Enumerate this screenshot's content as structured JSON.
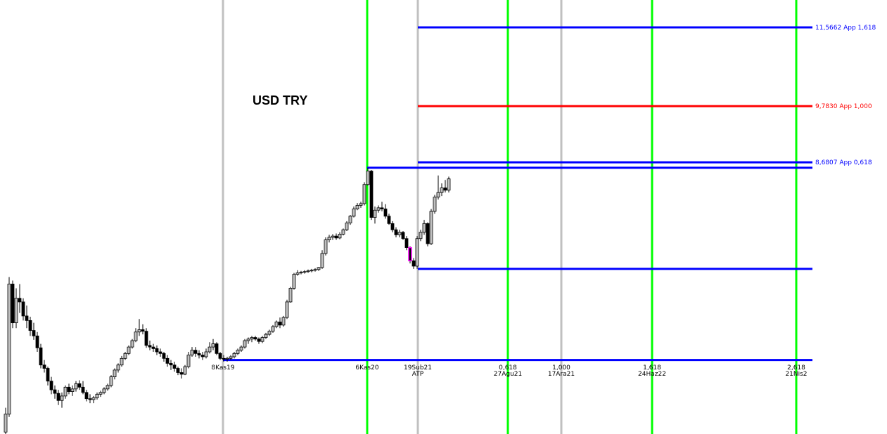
{
  "chart_data": {
    "type": "candlestick",
    "title": "USD TRY",
    "log_scale": true,
    "ylim": [
      4.87,
      12.26
    ],
    "xlim": [
      -1.6,
      250.6
    ],
    "up_color": "#c0c0c0",
    "down_color": "#000000",
    "highlight": {
      "index": 115,
      "color": "#ff00ff"
    },
    "candles": [
      [
        4.89,
        5.15,
        4.86,
        5.08
      ],
      [
        5.08,
        6.8,
        5.05,
        6.7
      ],
      [
        6.7,
        6.75,
        6.1,
        6.17
      ],
      [
        6.17,
        6.64,
        6.1,
        6.5
      ],
      [
        6.5,
        6.7,
        6.3,
        6.45
      ],
      [
        6.45,
        6.5,
        6.2,
        6.26
      ],
      [
        6.26,
        6.4,
        6.1,
        6.2
      ],
      [
        6.2,
        6.25,
        6.0,
        6.07
      ],
      [
        6.07,
        6.17,
        5.95,
        6.0
      ],
      [
        6.0,
        6.05,
        5.8,
        5.85
      ],
      [
        5.85,
        5.9,
        5.6,
        5.64
      ],
      [
        5.64,
        5.7,
        5.55,
        5.6
      ],
      [
        5.6,
        5.62,
        5.4,
        5.45
      ],
      [
        5.45,
        5.5,
        5.3,
        5.35
      ],
      [
        5.35,
        5.4,
        5.25,
        5.31
      ],
      [
        5.31,
        5.35,
        5.18,
        5.23
      ],
      [
        5.23,
        5.32,
        5.15,
        5.28
      ],
      [
        5.28,
        5.4,
        5.25,
        5.38
      ],
      [
        5.38,
        5.42,
        5.3,
        5.33
      ],
      [
        5.33,
        5.4,
        5.28,
        5.36
      ],
      [
        5.36,
        5.45,
        5.33,
        5.42
      ],
      [
        5.42,
        5.46,
        5.35,
        5.38
      ],
      [
        5.38,
        5.45,
        5.3,
        5.32
      ],
      [
        5.32,
        5.35,
        5.22,
        5.25
      ],
      [
        5.25,
        5.3,
        5.2,
        5.24
      ],
      [
        5.24,
        5.28,
        5.2,
        5.26
      ],
      [
        5.26,
        5.32,
        5.24,
        5.3
      ],
      [
        5.3,
        5.34,
        5.27,
        5.32
      ],
      [
        5.32,
        5.38,
        5.3,
        5.36
      ],
      [
        5.36,
        5.42,
        5.34,
        5.4
      ],
      [
        5.4,
        5.52,
        5.38,
        5.5
      ],
      [
        5.5,
        5.6,
        5.47,
        5.58
      ],
      [
        5.58,
        5.66,
        5.55,
        5.64
      ],
      [
        5.64,
        5.75,
        5.62,
        5.72
      ],
      [
        5.72,
        5.8,
        5.7,
        5.78
      ],
      [
        5.78,
        5.88,
        5.76,
        5.86
      ],
      [
        5.86,
        5.96,
        5.84,
        5.94
      ],
      [
        5.94,
        6.1,
        5.92,
        6.05
      ],
      [
        6.05,
        6.22,
        6.0,
        6.08
      ],
      [
        6.08,
        6.15,
        6.02,
        6.06
      ],
      [
        6.06,
        6.1,
        5.85,
        5.88
      ],
      [
        5.88,
        5.94,
        5.82,
        5.86
      ],
      [
        5.86,
        5.9,
        5.8,
        5.84
      ],
      [
        5.84,
        5.88,
        5.76,
        5.8
      ],
      [
        5.8,
        5.84,
        5.74,
        5.78
      ],
      [
        5.78,
        5.8,
        5.68,
        5.72
      ],
      [
        5.72,
        5.76,
        5.62,
        5.66
      ],
      [
        5.66,
        5.7,
        5.58,
        5.64
      ],
      [
        5.64,
        5.68,
        5.56,
        5.6
      ],
      [
        5.6,
        5.62,
        5.52,
        5.55
      ],
      [
        5.55,
        5.6,
        5.48,
        5.53
      ],
      [
        5.53,
        5.64,
        5.52,
        5.62
      ],
      [
        5.62,
        5.8,
        5.6,
        5.76
      ],
      [
        5.76,
        5.86,
        5.74,
        5.82
      ],
      [
        5.82,
        5.86,
        5.74,
        5.78
      ],
      [
        5.78,
        5.82,
        5.72,
        5.76
      ],
      [
        5.76,
        5.8,
        5.7,
        5.74
      ],
      [
        5.74,
        5.84,
        5.72,
        5.8
      ],
      [
        5.8,
        5.92,
        5.78,
        5.86
      ],
      [
        5.86,
        5.96,
        5.82,
        5.9
      ],
      [
        5.9,
        5.92,
        5.76,
        5.78
      ],
      [
        5.78,
        5.8,
        5.7,
        5.72
      ],
      [
        5.72,
        5.76,
        5.68,
        5.71
      ],
      [
        5.71,
        5.74,
        5.68,
        5.72
      ],
      [
        5.72,
        5.76,
        5.7,
        5.74
      ],
      [
        5.74,
        5.8,
        5.72,
        5.78
      ],
      [
        5.78,
        5.84,
        5.76,
        5.82
      ],
      [
        5.82,
        5.88,
        5.8,
        5.86
      ],
      [
        5.86,
        5.96,
        5.84,
        5.94
      ],
      [
        5.94,
        5.98,
        5.9,
        5.96
      ],
      [
        5.96,
        6.0,
        5.92,
        5.98
      ],
      [
        5.98,
        6.0,
        5.94,
        5.96
      ],
      [
        5.96,
        5.98,
        5.9,
        5.93
      ],
      [
        5.93,
        6.0,
        5.91,
        5.98
      ],
      [
        5.98,
        6.04,
        5.96,
        6.02
      ],
      [
        6.02,
        6.08,
        6.0,
        6.06
      ],
      [
        6.06,
        6.14,
        6.04,
        6.12
      ],
      [
        6.12,
        6.2,
        6.1,
        6.18
      ],
      [
        6.18,
        6.24,
        6.1,
        6.14
      ],
      [
        6.14,
        6.26,
        6.12,
        6.24
      ],
      [
        6.24,
        6.48,
        6.22,
        6.45
      ],
      [
        6.45,
        6.66,
        6.44,
        6.64
      ],
      [
        6.64,
        6.86,
        6.62,
        6.84
      ],
      [
        6.84,
        6.9,
        6.82,
        6.86
      ],
      [
        6.86,
        6.89,
        6.84,
        6.87
      ],
      [
        6.87,
        6.9,
        6.85,
        6.88
      ],
      [
        6.88,
        6.91,
        6.86,
        6.89
      ],
      [
        6.89,
        6.92,
        6.87,
        6.9
      ],
      [
        6.9,
        6.93,
        6.88,
        6.91
      ],
      [
        6.91,
        6.95,
        6.89,
        6.94
      ],
      [
        6.94,
        7.2,
        6.92,
        7.15
      ],
      [
        7.15,
        7.4,
        7.12,
        7.36
      ],
      [
        7.36,
        7.44,
        7.32,
        7.4
      ],
      [
        7.4,
        7.45,
        7.36,
        7.42
      ],
      [
        7.42,
        7.46,
        7.36,
        7.39
      ],
      [
        7.39,
        7.48,
        7.37,
        7.45
      ],
      [
        7.45,
        7.54,
        7.43,
        7.52
      ],
      [
        7.52,
        7.66,
        7.5,
        7.63
      ],
      [
        7.63,
        7.76,
        7.6,
        7.74
      ],
      [
        7.74,
        7.9,
        7.72,
        7.86
      ],
      [
        7.86,
        7.96,
        7.84,
        7.92
      ],
      [
        7.92,
        7.98,
        7.88,
        7.95
      ],
      [
        7.95,
        8.32,
        7.92,
        8.28
      ],
      [
        8.28,
        8.58,
        8.26,
        8.52
      ],
      [
        8.52,
        8.54,
        7.68,
        7.72
      ],
      [
        7.72,
        7.9,
        7.62,
        7.84
      ],
      [
        7.84,
        7.92,
        7.8,
        7.88
      ],
      [
        7.88,
        7.98,
        7.82,
        7.86
      ],
      [
        7.86,
        7.94,
        7.7,
        7.74
      ],
      [
        7.74,
        7.78,
        7.6,
        7.62
      ],
      [
        7.62,
        7.66,
        7.48,
        7.52
      ],
      [
        7.52,
        7.56,
        7.4,
        7.44
      ],
      [
        7.44,
        7.52,
        7.4,
        7.48
      ],
      [
        7.48,
        7.5,
        7.36,
        7.38
      ],
      [
        7.38,
        7.42,
        7.2,
        7.24
      ],
      [
        7.24,
        7.26,
        7.0,
        7.04
      ],
      [
        7.04,
        7.08,
        6.92,
        6.96
      ],
      [
        6.96,
        7.42,
        6.92,
        7.38
      ],
      [
        7.38,
        7.52,
        7.34,
        7.48
      ],
      [
        7.48,
        7.68,
        7.44,
        7.62
      ],
      [
        7.62,
        7.64,
        7.26,
        7.3
      ],
      [
        7.3,
        7.86,
        7.28,
        7.82
      ],
      [
        7.82,
        8.1,
        7.78,
        8.06
      ],
      [
        8.06,
        8.44,
        8.02,
        8.14
      ],
      [
        8.14,
        8.3,
        8.08,
        8.22
      ],
      [
        8.22,
        8.36,
        8.14,
        8.18
      ],
      [
        8.18,
        8.42,
        8.14,
        8.38
      ]
    ],
    "vertical_lines": [
      {
        "x": 61.8,
        "color": "#c0c0c0",
        "labels": [
          "8Kas19"
        ]
      },
      {
        "x": 102.8,
        "color": "#00ff00",
        "labels": [
          "6Kas20"
        ]
      },
      {
        "x": 117.2,
        "color": "#c0c0c0",
        "labels": [
          "19Sub21",
          "ATP"
        ]
      },
      {
        "x": 142.8,
        "color": "#00ff00",
        "labels": [
          "0,618",
          "27Agu21"
        ]
      },
      {
        "x": 158,
        "color": "#c0c0c0",
        "labels": [
          "1,000",
          "17Ara21"
        ]
      },
      {
        "x": 183.8,
        "color": "#00ff00",
        "labels": [
          "1,618",
          "24Haz22"
        ]
      },
      {
        "x": 224.8,
        "color": "#00ff00",
        "labels": [
          "2,618",
          "21Nis2"
        ]
      }
    ],
    "levels": [
      {
        "value": {
          "value": 11.5662,
          "label": "11,5662 App 1,618"
        },
        "from": 117.2,
        "to": 229.4,
        "color": "#0000ff"
      },
      {
        "value": {
          "value": 9.783,
          "label": "9,7830 App 1,000"
        },
        "from": 117.2,
        "to": 229.4,
        "color": "#ff0000"
      },
      {
        "value": {
          "value": 8.6807,
          "label": "8,6807 App 0,618"
        },
        "from": 117.2,
        "to": 229.4,
        "color": "#0000ff"
      },
      {
        "value": 8.58,
        "from": 102.8,
        "to": 229.4,
        "color": "#0000ff"
      },
      {
        "value": 6.92,
        "from": 117.2,
        "to": 229.4,
        "color": "#0000ff"
      },
      {
        "value": 5.7,
        "from": 61.8,
        "to": 229.4,
        "color": "#0000ff"
      }
    ]
  }
}
